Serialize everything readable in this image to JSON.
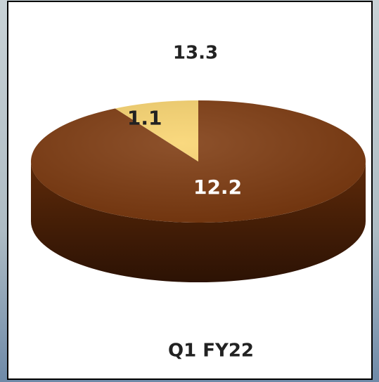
{
  "chart_data": {
    "type": "pie",
    "total": 13.3,
    "caption": "Q1 FY22",
    "values": [
      12.2,
      1.1
    ],
    "colors": [
      "#7e3a0f",
      "#f9d46e"
    ],
    "label_colors": [
      "#ffffff",
      "#222222"
    ]
  }
}
